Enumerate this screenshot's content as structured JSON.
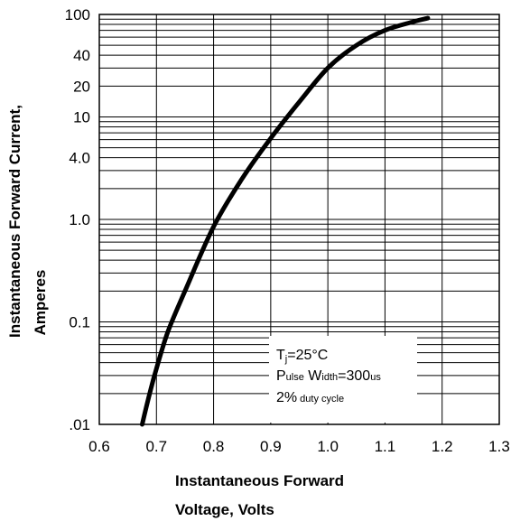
{
  "chart_data": {
    "type": "line",
    "xlabel_line1": "Instantaneous Forward",
    "xlabel_line2": "Voltage, Volts",
    "ylabel_line1": "Instantaneous Forward Current,",
    "ylabel_line2": "Amperes",
    "xlim": [
      0.6,
      1.3
    ],
    "ylim": [
      0.01,
      100
    ],
    "yscale": "log",
    "grid": true,
    "x_ticks": [
      "0.6",
      "0.7",
      "0.8",
      "0.9",
      "1.0",
      "1.1",
      "1.2",
      "1.3"
    ],
    "y_ticks": [
      {
        "value": 100,
        "label": "100"
      },
      {
        "value": 40,
        "label": "40"
      },
      {
        "value": 20,
        "label": "20"
      },
      {
        "value": 10,
        "label": "10"
      },
      {
        "value": 4,
        "label": "4.0"
      },
      {
        "value": 1,
        "label": "1.0"
      },
      {
        "value": 0.1,
        "label": "0.1"
      },
      {
        "value": 0.01,
        "label": ".01"
      }
    ],
    "series": [
      {
        "x": [
          0.675,
          0.69,
          0.7,
          0.72,
          0.75,
          0.8,
          0.85,
          0.9,
          0.95,
          1.0,
          1.05,
          1.1,
          1.15,
          1.175
        ],
        "y": [
          0.01,
          0.022,
          0.035,
          0.08,
          0.2,
          0.85,
          2.5,
          6.2,
          14,
          30,
          50,
          70,
          85,
          92
        ]
      }
    ],
    "legend": {
      "line1_prefix": "T",
      "line1_sub": "j",
      "line1_suffix": "=25°C",
      "line2_prefix": "P",
      "line2_sub": "ulse",
      "line2_mid": " W",
      "line2_sub2": "idth",
      "line2_suffix": "=300",
      "line2_sub3": "us",
      "line3_main": "2%",
      "line3_small": " duty cycle"
    },
    "colors": {
      "curve": "#000000",
      "grid": "#000000",
      "background": "#ffffff"
    }
  }
}
